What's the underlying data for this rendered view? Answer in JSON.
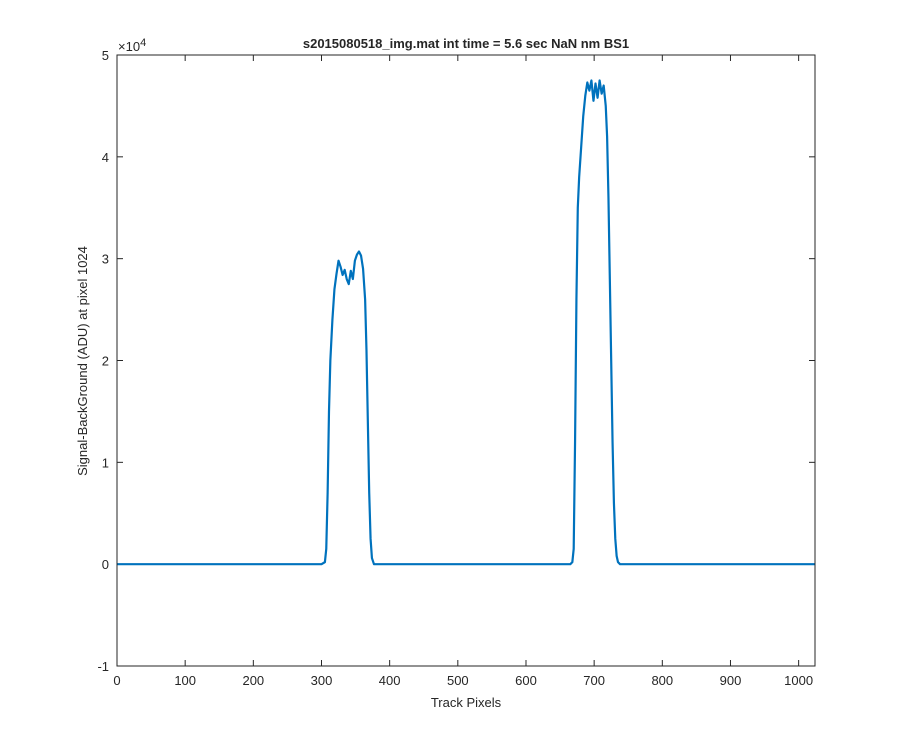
{
  "figure": {
    "background": "#ffffff",
    "line_color": "#0072BD",
    "axis_color": "#262626"
  },
  "chart_data": {
    "type": "line",
    "title": "s2015080518_img.mat int time = 5.6 sec  NaN nm BS1",
    "xlabel": "Track Pixels",
    "ylabel": "Signal-BackGround (ADU) at pixel 1024",
    "xlim": [
      0,
      1024
    ],
    "ylim": [
      -10000,
      50000
    ],
    "y_exponent_label": "×10",
    "y_exponent_power": "4",
    "xticks": [
      0,
      100,
      200,
      300,
      400,
      500,
      600,
      700,
      800,
      900,
      1000
    ],
    "xtick_labels": [
      "0",
      "100",
      "200",
      "300",
      "400",
      "500",
      "600",
      "700",
      "800",
      "900",
      "1000"
    ],
    "yticks": [
      -10000,
      0,
      10000,
      20000,
      30000,
      40000,
      50000
    ],
    "ytick_labels": [
      "-1",
      "0",
      "1",
      "2",
      "3",
      "4",
      "5"
    ],
    "grid": false,
    "series": [
      {
        "points": [
          [
            0,
            0
          ],
          [
            300,
            0
          ],
          [
            305,
            200
          ],
          [
            307,
            1500
          ],
          [
            309,
            7000
          ],
          [
            311,
            15000
          ],
          [
            313,
            20000
          ],
          [
            316,
            24000
          ],
          [
            319,
            27000
          ],
          [
            322,
            28500
          ],
          [
            325,
            29800
          ],
          [
            328,
            29200
          ],
          [
            331,
            28400
          ],
          [
            334,
            28900
          ],
          [
            337,
            28000
          ],
          [
            340,
            27500
          ],
          [
            343,
            28800
          ],
          [
            346,
            28000
          ],
          [
            349,
            29800
          ],
          [
            352,
            30400
          ],
          [
            355,
            30700
          ],
          [
            358,
            30300
          ],
          [
            361,
            29000
          ],
          [
            364,
            26000
          ],
          [
            366,
            21000
          ],
          [
            368,
            14000
          ],
          [
            370,
            7000
          ],
          [
            372,
            2500
          ],
          [
            374,
            600
          ],
          [
            377,
            0
          ],
          [
            665,
            0
          ],
          [
            668,
            200
          ],
          [
            670,
            1500
          ],
          [
            672,
            12000
          ],
          [
            674,
            26000
          ],
          [
            676,
            35000
          ],
          [
            678,
            38000
          ],
          [
            681,
            41000
          ],
          [
            684,
            44000
          ],
          [
            687,
            46000
          ],
          [
            690,
            47300
          ],
          [
            693,
            46500
          ],
          [
            696,
            47500
          ],
          [
            699,
            45500
          ],
          [
            702,
            47200
          ],
          [
            705,
            45800
          ],
          [
            708,
            47500
          ],
          [
            711,
            46200
          ],
          [
            714,
            47000
          ],
          [
            717,
            45000
          ],
          [
            719,
            42000
          ],
          [
            721,
            36000
          ],
          [
            723,
            28000
          ],
          [
            725,
            20000
          ],
          [
            727,
            12000
          ],
          [
            729,
            6000
          ],
          [
            731,
            2500
          ],
          [
            733,
            800
          ],
          [
            735,
            200
          ],
          [
            738,
            0
          ],
          [
            1024,
            0
          ]
        ]
      }
    ]
  }
}
